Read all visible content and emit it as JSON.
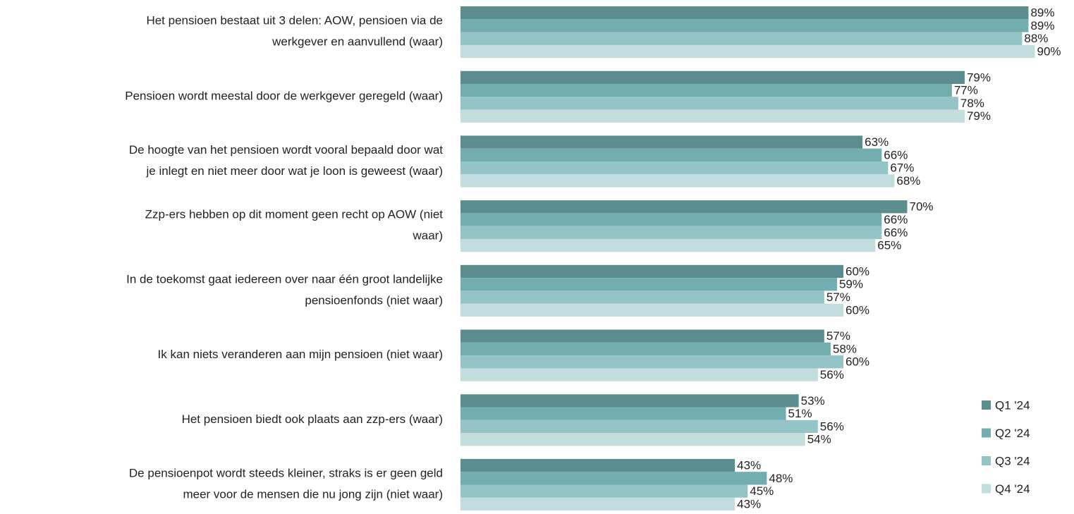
{
  "chart_data": {
    "type": "hbar",
    "categories": [
      "Het pensioen bestaat uit 3 delen: AOW,  pensioen via de\nwerkgever en aanvullend (waar)",
      "Pensioen wordt meestal door de werkgever geregeld (waar)",
      "De hoogte van het pensioen wordt vooral bepaald door wat\nje inlegt en niet meer door wat je loon is geweest (waar)",
      "Zzp-ers hebben op dit moment geen recht op AOW (niet\nwaar)",
      "In de toekomst gaat iedereen over naar één groot landelijke\npensioenfonds (niet waar)",
      "Ik kan niets veranderen aan mijn pensioen (niet waar)",
      "Het pensioen biedt ook plaats aan zzp-ers (waar)",
      "De pensioenpot wordt steeds kleiner, straks is er geen geld\nmeer voor de mensen die nu jong zijn (niet waar)"
    ],
    "series": [
      {
        "name": "Q1 '24",
        "color": "#5b8d8f",
        "values": [
          89,
          79,
          63,
          70,
          60,
          57,
          53,
          43
        ],
        "value_labels": [
          "89%",
          "79%",
          "63%",
          "70%",
          "60%",
          "57%",
          "53%",
          "43%"
        ]
      },
      {
        "name": "Q2 '24",
        "color": "#72adb0",
        "values": [
          89,
          77,
          66,
          66,
          59,
          58,
          51,
          48
        ],
        "value_labels": [
          "89%",
          "77%",
          "66%",
          "66%",
          "59%",
          "58%",
          "51%",
          "48%"
        ]
      },
      {
        "name": "Q3 '24",
        "color": "#95c4c6",
        "values": [
          88,
          78,
          67,
          66,
          57,
          60,
          56,
          45
        ],
        "value_labels": [
          "88%",
          "78%",
          "67%",
          "66%",
          "57%",
          "60%",
          "56%",
          "45%"
        ]
      },
      {
        "name": "Q4 '24",
        "color": "#c3dcde",
        "values": [
          90,
          79,
          68,
          65,
          60,
          56,
          54,
          43
        ],
        "value_labels": [
          "90%",
          "79%",
          "68%",
          "65%",
          "60%",
          "56%",
          "54%",
          "43%"
        ]
      }
    ],
    "xlim": [
      0,
      100
    ],
    "legend": "bottom-right"
  }
}
